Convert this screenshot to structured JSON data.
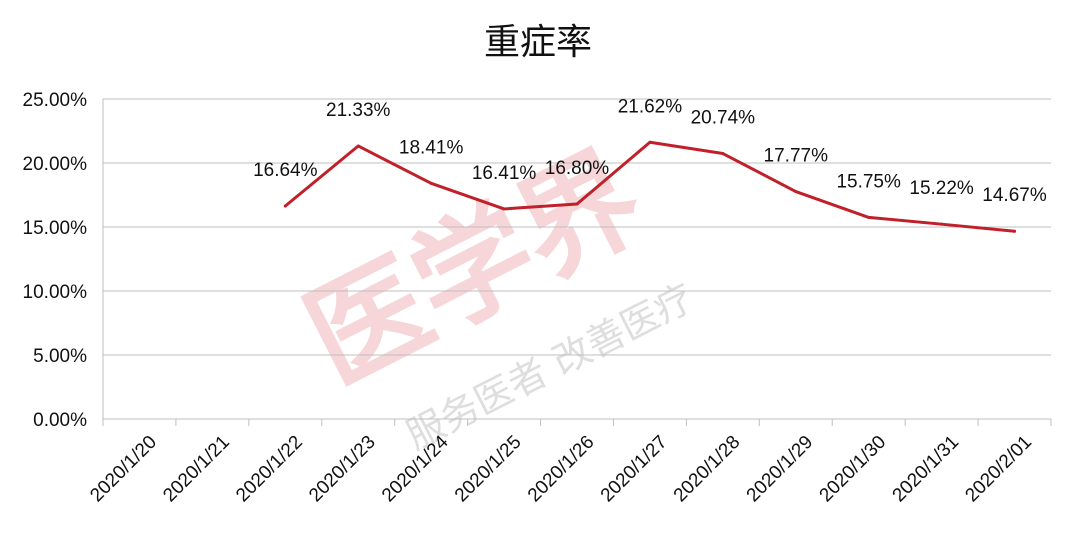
{
  "chart_data": {
    "type": "line",
    "title": "重症率",
    "categories": [
      "2020/1/20",
      "2020/1/21",
      "2020/1/22",
      "2020/1/23",
      "2020/1/24",
      "2020/1/25",
      "2020/1/26",
      "2020/1/27",
      "2020/1/28",
      "2020/1/29",
      "2020/1/30",
      "2020/1/31",
      "2020/2/01"
    ],
    "series": [
      {
        "values": [
          null,
          null,
          16.64,
          21.33,
          18.41,
          16.41,
          16.8,
          21.62,
          20.74,
          17.77,
          15.75,
          15.22,
          14.67
        ],
        "labels": [
          null,
          null,
          "16.64%",
          "21.33%",
          "18.41%",
          "16.41%",
          "16.80%",
          "21.62%",
          "20.74%",
          "17.77%",
          "15.75%",
          "15.22%",
          "14.67%"
        ],
        "color": "#c0202a"
      }
    ],
    "yticks": [
      "0.00%",
      "5.00%",
      "10.00%",
      "15.00%",
      "20.00%",
      "25.00%"
    ],
    "ylim": [
      0,
      25
    ],
    "grid": true,
    "legend": "none"
  },
  "watermark": {
    "main": "医学界",
    "sub": "服务医者 改善医疗"
  }
}
